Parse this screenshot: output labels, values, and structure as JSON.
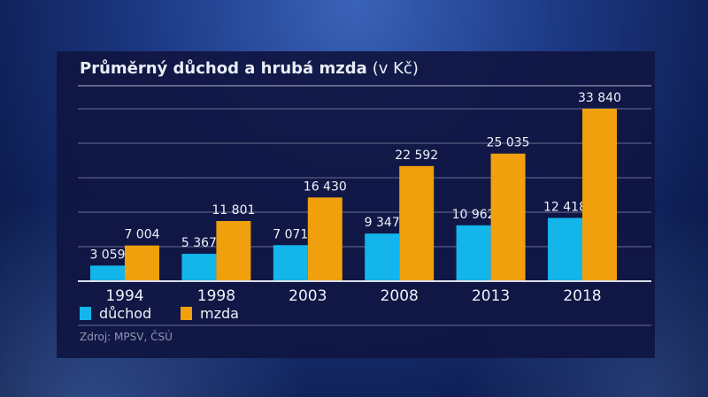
{
  "chart_data": {
    "type": "bar",
    "title": "Průměrný důchod a hrubá mzda",
    "title_unit": "(v Kč)",
    "categories": [
      "1994",
      "1998",
      "2003",
      "2008",
      "2013",
      "2018"
    ],
    "series": [
      {
        "name": "důchod",
        "color": "#13b5ea",
        "values": [
          3059,
          5367,
          7071,
          9347,
          10962,
          12418
        ],
        "labels": [
          "3 059",
          "5 367",
          "7 071",
          "9 347",
          "10 962",
          "12 418"
        ]
      },
      {
        "name": "mzda",
        "color": "#f0a00c",
        "values": [
          7004,
          11801,
          16430,
          22592,
          25035,
          33840
        ],
        "labels": [
          "7 004",
          "11 801",
          "16 430",
          "22 592",
          "25 035",
          "33 840"
        ]
      }
    ],
    "ylim": [
      0,
      33840
    ],
    "grid": true,
    "legend": "bottom-left",
    "source": "Zdroj: MPSV, ČSÚ"
  }
}
